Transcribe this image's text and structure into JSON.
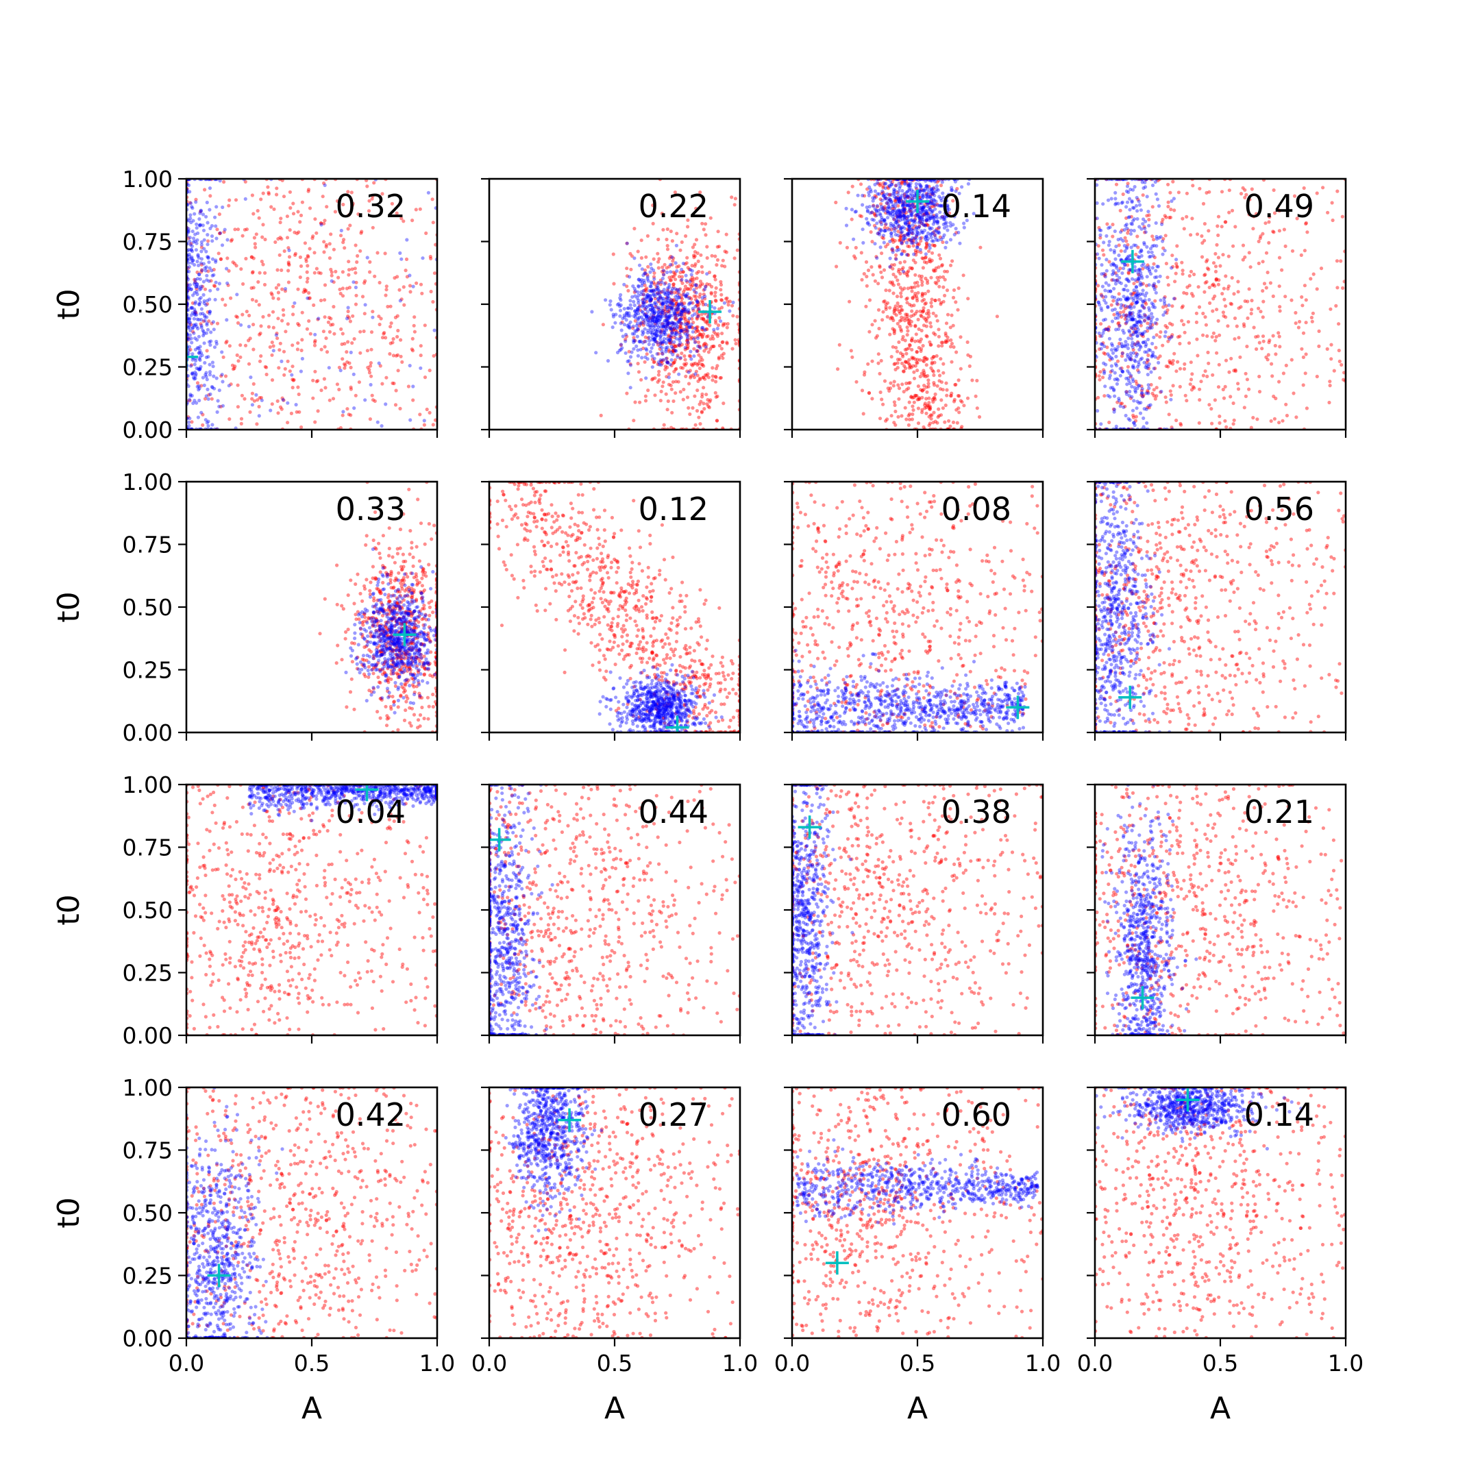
{
  "chart_data": {
    "type": "scatter",
    "layout": "4x4 grid of scatter subplots, shared axes",
    "xlabel": "A",
    "ylabel": "t0",
    "xlim": [
      0,
      1
    ],
    "ylim": [
      0,
      1
    ],
    "x_ticks": [
      "0.0",
      "0.5",
      "1.0"
    ],
    "y_ticks": [
      "0.00",
      "0.25",
      "0.50",
      "0.75",
      "1.00"
    ],
    "grid": false,
    "series_colors": {
      "red": "#ff0000",
      "blue": "#0000ff",
      "marker": "#00bfbf"
    },
    "subplots": [
      {
        "value_label": "0.32",
        "marker": [
          0.0,
          0.29
        ],
        "red": {
          "shape": "diffuse",
          "cx": 0.45,
          "cy": 0.55,
          "sx": 0.28,
          "sy": 0.25,
          "n": 600
        },
        "blue": {
          "shape": "column",
          "cx": 0.04,
          "cy": 0.5,
          "sx": 0.05,
          "sy": 0.3,
          "n": 450,
          "extra_scatter": 80
        }
      },
      {
        "value_label": "0.22",
        "marker": [
          0.88,
          0.47
        ],
        "red": {
          "shape": "blob",
          "cx": 0.78,
          "cy": 0.42,
          "sx": 0.11,
          "sy": 0.2,
          "n": 700
        },
        "blue": {
          "shape": "blob",
          "cx": 0.68,
          "cy": 0.45,
          "sx": 0.09,
          "sy": 0.09,
          "n": 650
        }
      },
      {
        "value_label": "0.14",
        "marker": [
          0.5,
          0.91
        ],
        "red": {
          "shape": "band",
          "cx": 0.48,
          "cy": 0.45,
          "sx": 0.16,
          "sy": 0.27,
          "n": 800
        },
        "blue": {
          "shape": "blob",
          "cx": 0.48,
          "cy": 0.88,
          "sx": 0.09,
          "sy": 0.08,
          "n": 650
        }
      },
      {
        "value_label": "0.49",
        "marker": [
          0.15,
          0.67
        ],
        "red": {
          "shape": "diffuse",
          "cx": 0.32,
          "cy": 0.5,
          "sx": 0.26,
          "sy": 0.27,
          "n": 650
        },
        "blue": {
          "shape": "column",
          "cx": 0.14,
          "cy": 0.5,
          "sx": 0.07,
          "sy": 0.27,
          "n": 650
        }
      },
      {
        "value_label": "0.33",
        "marker": [
          0.87,
          0.39
        ],
        "red": {
          "shape": "blob",
          "cx": 0.86,
          "cy": 0.42,
          "sx": 0.1,
          "sy": 0.18,
          "n": 650
        },
        "blue": {
          "shape": "blob",
          "cx": 0.84,
          "cy": 0.38,
          "sx": 0.07,
          "sy": 0.1,
          "n": 650
        }
      },
      {
        "value_label": "0.12",
        "marker": [
          0.75,
          0.02
        ],
        "red": {
          "shape": "diagonal",
          "cx": 0.55,
          "cy": 0.45,
          "sx": 0.18,
          "sy": 0.25,
          "n": 800
        },
        "blue": {
          "shape": "blob",
          "cx": 0.68,
          "cy": 0.1,
          "sx": 0.08,
          "sy": 0.06,
          "n": 650
        }
      },
      {
        "value_label": "0.08",
        "marker": [
          0.9,
          0.1
        ],
        "red": {
          "shape": "diffuse",
          "cx": 0.35,
          "cy": 0.45,
          "sx": 0.26,
          "sy": 0.25,
          "n": 600
        },
        "blue": {
          "shape": "horizontal",
          "cx": 0.45,
          "cy": 0.1,
          "sx": 0.3,
          "sy": 0.04,
          "n": 800
        }
      },
      {
        "value_label": "0.56",
        "marker": [
          0.14,
          0.14
        ],
        "red": {
          "shape": "diffuse",
          "cx": 0.28,
          "cy": 0.52,
          "sx": 0.24,
          "sy": 0.26,
          "n": 650
        },
        "blue": {
          "shape": "column",
          "cx": 0.08,
          "cy": 0.45,
          "sx": 0.07,
          "sy": 0.3,
          "n": 650
        }
      },
      {
        "value_label": "0.04",
        "marker": [
          0.72,
          0.98
        ],
        "red": {
          "shape": "diffuse",
          "cx": 0.3,
          "cy": 0.5,
          "sx": 0.23,
          "sy": 0.27,
          "n": 650
        },
        "blue": {
          "shape": "top_band",
          "cx": 0.65,
          "cy": 0.97,
          "sx": 0.25,
          "sy": 0.02,
          "n": 700
        }
      },
      {
        "value_label": "0.44",
        "marker": [
          0.04,
          0.78
        ],
        "red": {
          "shape": "diffuse",
          "cx": 0.28,
          "cy": 0.5,
          "sx": 0.26,
          "sy": 0.28,
          "n": 650
        },
        "blue": {
          "shape": "column",
          "cx": 0.06,
          "cy": 0.35,
          "sx": 0.06,
          "sy": 0.3,
          "n": 650
        }
      },
      {
        "value_label": "0.38",
        "marker": [
          0.07,
          0.83
        ],
        "red": {
          "shape": "diffuse",
          "cx": 0.32,
          "cy": 0.55,
          "sx": 0.26,
          "sy": 0.27,
          "n": 650
        },
        "blue": {
          "shape": "column",
          "cx": 0.05,
          "cy": 0.45,
          "sx": 0.05,
          "sy": 0.3,
          "n": 650
        }
      },
      {
        "value_label": "0.21",
        "marker": [
          0.19,
          0.15
        ],
        "red": {
          "shape": "diffuse",
          "cx": 0.35,
          "cy": 0.5,
          "sx": 0.25,
          "sy": 0.28,
          "n": 650
        },
        "blue": {
          "shape": "column",
          "cx": 0.19,
          "cy": 0.35,
          "sx": 0.06,
          "sy": 0.25,
          "n": 700
        }
      },
      {
        "value_label": "0.42",
        "marker": [
          0.13,
          0.25
        ],
        "red": {
          "shape": "diffuse",
          "cx": 0.4,
          "cy": 0.5,
          "sx": 0.27,
          "sy": 0.27,
          "n": 650
        },
        "blue": {
          "shape": "column",
          "cx": 0.12,
          "cy": 0.3,
          "sx": 0.08,
          "sy": 0.25,
          "n": 650
        }
      },
      {
        "value_label": "0.27",
        "marker": [
          0.32,
          0.87
        ],
        "red": {
          "shape": "diffuse",
          "cx": 0.38,
          "cy": 0.5,
          "sx": 0.23,
          "sy": 0.27,
          "n": 700
        },
        "blue": {
          "shape": "blob",
          "cx": 0.24,
          "cy": 0.82,
          "sx": 0.07,
          "sy": 0.13,
          "n": 650
        }
      },
      {
        "value_label": "0.60",
        "marker": [
          0.18,
          0.3
        ],
        "red": {
          "shape": "diffuse",
          "cx": 0.28,
          "cy": 0.55,
          "sx": 0.2,
          "sy": 0.23,
          "n": 700
        },
        "blue": {
          "shape": "horizontal",
          "cx": 0.5,
          "cy": 0.6,
          "sx": 0.3,
          "sy": 0.03,
          "n": 650
        }
      },
      {
        "value_label": "0.14",
        "marker": [
          0.37,
          0.95
        ],
        "red": {
          "shape": "diffuse",
          "cx": 0.38,
          "cy": 0.6,
          "sx": 0.22,
          "sy": 0.27,
          "n": 650
        },
        "blue": {
          "shape": "blob",
          "cx": 0.38,
          "cy": 0.92,
          "sx": 0.12,
          "sy": 0.05,
          "n": 650
        }
      }
    ]
  }
}
